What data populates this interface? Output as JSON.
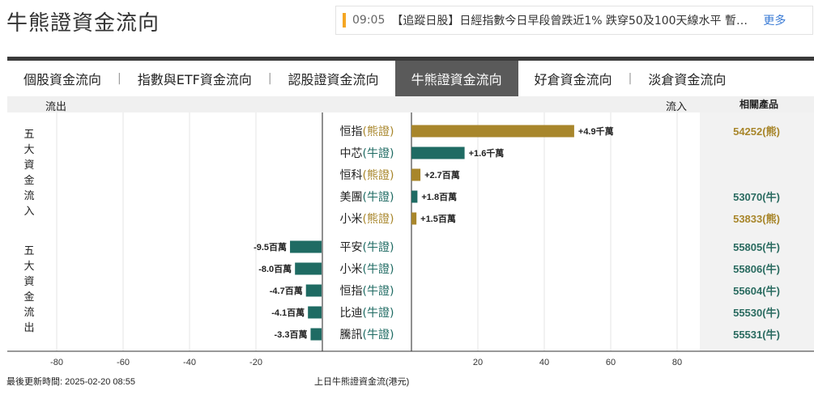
{
  "header": {
    "title": "牛熊證資金流向",
    "ticker_time": "09:05",
    "ticker_text": "【追蹤日股】日經指數今日早段曾跌近1% 跌穿50及100天線水平 暫…",
    "ticker_more": "更多",
    "accent_color": "#f5a623"
  },
  "tabs": [
    {
      "label": "個股資金流向"
    },
    {
      "label": "指數與ETF資金流向"
    },
    {
      "label": "認股證資金流向"
    },
    {
      "label": "牛熊證資金流向",
      "active": true
    },
    {
      "label": "好倉資金流向"
    },
    {
      "label": "淡倉資金流向"
    }
  ],
  "table_header": {
    "outflow": "流出",
    "inflow": "流入",
    "related": "相關產品"
  },
  "side_labels": {
    "top5_in": "五大資金流入",
    "top5_out": "五大資金流出"
  },
  "footer": {
    "updated": "最後更新時間: 2025-02-20 08:55",
    "caption": "上日牛熊證資金流(港元)"
  },
  "colors": {
    "bear": "#a8862b",
    "bull": "#1f6b63",
    "related_bear": "#a8862b",
    "related_bull": "#2a6b60"
  },
  "chart_data": {
    "type": "bar",
    "orientation": "horizontal",
    "xlabel": "上日牛熊證資金流(港元)",
    "x_ticks": [
      -80,
      -60,
      -40,
      -20,
      20,
      40,
      60,
      80
    ],
    "xlim": [
      -80,
      80
    ],
    "unit_note": "scale in 百萬 (million)",
    "groups": [
      {
        "name": "五大資金流入",
        "rows": [
          {
            "underlying": "恒指",
            "kind": "熊證",
            "type": "bear",
            "value": 49,
            "label": "+4.9千萬",
            "related": "54252(熊)"
          },
          {
            "underlying": "中芯",
            "kind": "牛證",
            "type": "bull",
            "value": 16,
            "label": "+1.6千萬",
            "related": ""
          },
          {
            "underlying": "恒科",
            "kind": "熊證",
            "type": "bear",
            "value": 2.7,
            "label": "+2.7百萬",
            "related": ""
          },
          {
            "underlying": "美團",
            "kind": "牛證",
            "type": "bull",
            "value": 1.8,
            "label": "+1.8百萬",
            "related": "53070(牛)"
          },
          {
            "underlying": "小米",
            "kind": "熊證",
            "type": "bear",
            "value": 1.5,
            "label": "+1.5百萬",
            "related": "53833(熊)"
          }
        ]
      },
      {
        "name": "五大資金流出",
        "rows": [
          {
            "underlying": "平安",
            "kind": "牛證",
            "type": "bull",
            "value": -9.5,
            "label": "-9.5百萬",
            "related": "55805(牛)"
          },
          {
            "underlying": "小米",
            "kind": "牛證",
            "type": "bull",
            "value": -8.0,
            "label": "-8.0百萬",
            "related": "55806(牛)"
          },
          {
            "underlying": "恒指",
            "kind": "牛證",
            "type": "bull",
            "value": -4.7,
            "label": "-4.7百萬",
            "related": "55604(牛)"
          },
          {
            "underlying": "比迪",
            "kind": "牛證",
            "type": "bull",
            "value": -4.1,
            "label": "-4.1百萬",
            "related": "55530(牛)"
          },
          {
            "underlying": "騰訊",
            "kind": "牛證",
            "type": "bull",
            "value": -3.3,
            "label": "-3.3百萬",
            "related": "55531(牛)"
          }
        ]
      }
    ]
  }
}
